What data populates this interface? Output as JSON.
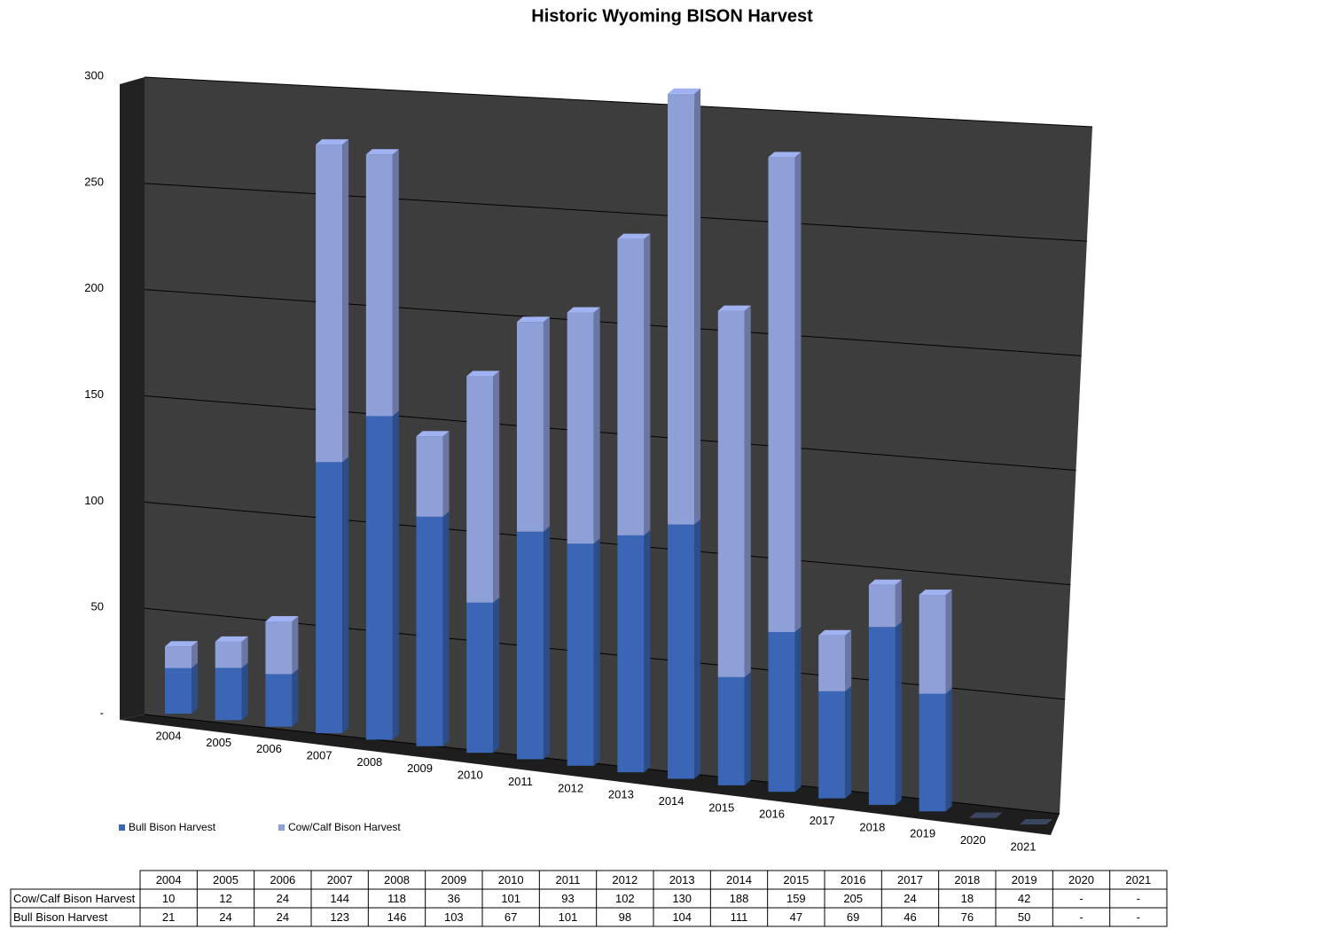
{
  "chart_data": {
    "type": "bar3d_stacked",
    "title": "Historic Wyoming BISON Harvest",
    "categories": [
      "2004",
      "2005",
      "2006",
      "2007",
      "2008",
      "2009",
      "2010",
      "2011",
      "2012",
      "2013",
      "2014",
      "2015",
      "2016",
      "2017",
      "2018",
      "2019",
      "2020",
      "2021"
    ],
    "series": [
      {
        "name": "Bull Bison Harvest",
        "color": "#3a66b5",
        "values": [
          21,
          24,
          24,
          123,
          146,
          103,
          67,
          101,
          98,
          104,
          111,
          47,
          69,
          46,
          76,
          50,
          0,
          0
        ],
        "value_labels": [
          "21",
          "24",
          "24",
          "123",
          "146",
          "103",
          "67",
          "101",
          "98",
          "104",
          "111",
          "47",
          "69",
          "46",
          "76",
          "50",
          "-",
          "-"
        ]
      },
      {
        "name": "Cow/Calf Bison Harvest",
        "color": "#8f9fd8",
        "values": [
          10,
          12,
          24,
          144,
          118,
          36,
          101,
          93,
          102,
          130,
          188,
          159,
          205,
          24,
          18,
          42,
          0,
          0
        ],
        "value_labels": [
          "10",
          "12",
          "24",
          "144",
          "118",
          "36",
          "101",
          "93",
          "102",
          "130",
          "188",
          "159",
          "205",
          "24",
          "18",
          "42",
          "-",
          "-"
        ]
      }
    ],
    "ylim": [
      0,
      300
    ],
    "yticks": [
      {
        "value": 0,
        "label": "-"
      },
      50,
      100,
      150,
      200,
      250,
      300
    ],
    "grid": true,
    "legend": "bottom-left",
    "data_table": true
  }
}
